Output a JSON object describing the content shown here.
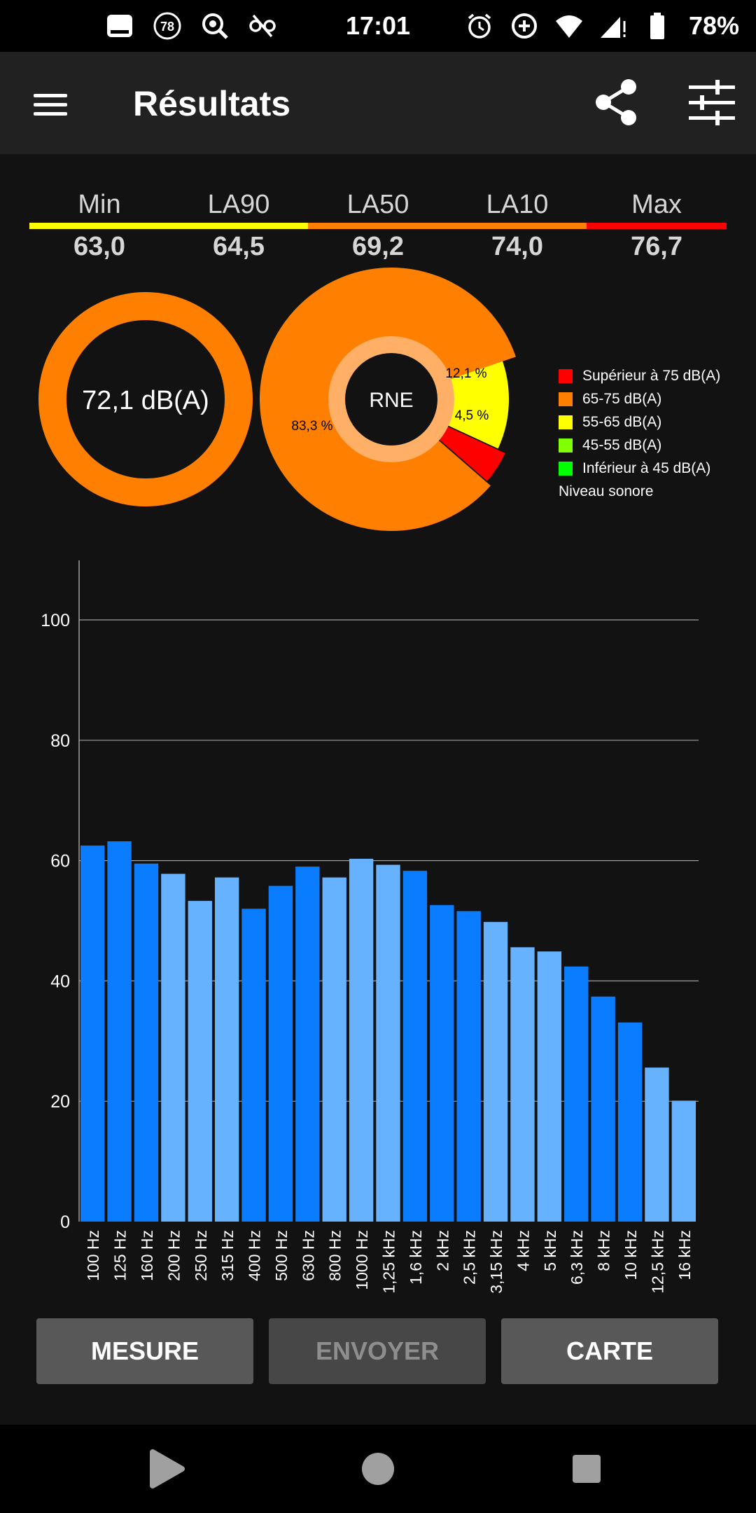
{
  "status_bar": {
    "time": "17:01",
    "battery": "78%",
    "notification_badge": "78",
    "icons": [
      "tablet-icon",
      "badge-78-icon",
      "search-sync-icon",
      "link-off-icon",
      "alarm-icon",
      "data-saver-icon",
      "wifi-icon",
      "signal-icon",
      "battery-icon"
    ]
  },
  "app_bar": {
    "title": "Résultats",
    "icons": [
      "menu-icon",
      "share-icon",
      "tune-icon"
    ]
  },
  "stats": [
    {
      "label": "Min",
      "value": "63,0",
      "color": "#ffff00"
    },
    {
      "label": "LA90",
      "value": "64,5",
      "color": "#ffff00"
    },
    {
      "label": "LA50",
      "value": "69,2",
      "color": "#ff8000"
    },
    {
      "label": "LA10",
      "value": "74,0",
      "color": "#ff8000"
    },
    {
      "label": "Max",
      "value": "76,7",
      "color": "#ff0000"
    }
  ],
  "gauge": {
    "label": "72,1 dB(A)",
    "color": "#ff8000"
  },
  "pie": {
    "center_label": "RNE",
    "slices": [
      {
        "label": "83,3 %",
        "value": 83.3,
        "color": "#ff8000"
      },
      {
        "label": "12,1 %",
        "value": 12.1,
        "color": "#ffff00"
      },
      {
        "label": "4,5 %",
        "value": 4.5,
        "color": "#ff0000"
      }
    ]
  },
  "legend": {
    "items": [
      {
        "label": "Supérieur à 75 dB(A)",
        "color": "#ff0000"
      },
      {
        "label": "65-75 dB(A)",
        "color": "#ff8000"
      },
      {
        "label": "55-65 dB(A)",
        "color": "#ffff00"
      },
      {
        "label": "45-55 dB(A)",
        "color": "#80ff00"
      },
      {
        "label": "Inférieur à 45 dB(A)",
        "color": "#00ff00"
      }
    ],
    "caption": "Niveau sonore"
  },
  "chart_data": {
    "type": "bar",
    "categories": [
      "100 Hz",
      "125 Hz",
      "160 Hz",
      "200 Hz",
      "250 Hz",
      "315 Hz",
      "400 Hz",
      "500 Hz",
      "630 Hz",
      "800 Hz",
      "1000 Hz",
      "1,25 kHz",
      "1,6 kHz",
      "2 kHz",
      "2,5 kHz",
      "3,15 kHz",
      "4 kHz",
      "5 kHz",
      "6,3 kHz",
      "8 kHz",
      "10 kHz",
      "12,5 kHz",
      "16 kHz"
    ],
    "values": [
      62.5,
      63.2,
      59.5,
      57.8,
      53.3,
      57.2,
      52.0,
      55.8,
      59.0,
      57.2,
      60.3,
      59.3,
      58.3,
      52.6,
      51.6,
      49.8,
      45.6,
      44.9,
      42.4,
      37.4,
      33.1,
      25.6,
      20.1
    ],
    "bar_colors": [
      "#0a7cff",
      "#0a7cff",
      "#0a7cff",
      "#66b2ff",
      "#66b2ff",
      "#66b2ff",
      "#0a7cff",
      "#0a7cff",
      "#0a7cff",
      "#66b2ff",
      "#66b2ff",
      "#66b2ff",
      "#0a7cff",
      "#0a7cff",
      "#0a7cff",
      "#66b2ff",
      "#66b2ff",
      "#66b2ff",
      "#0a7cff",
      "#0a7cff",
      "#0a7cff",
      "#66b2ff",
      "#66b2ff"
    ],
    "y_ticks": [
      "0",
      "20",
      "40",
      "60",
      "80",
      "100"
    ],
    "ylim": [
      0,
      110
    ],
    "grid": true,
    "xlabel": "",
    "ylabel": ""
  },
  "buttons": {
    "measure": "MESURE",
    "send": "ENVOYER",
    "map": "CARTE"
  },
  "nav_bar": {
    "icons": [
      "back-icon",
      "home-icon",
      "recents-icon"
    ]
  }
}
